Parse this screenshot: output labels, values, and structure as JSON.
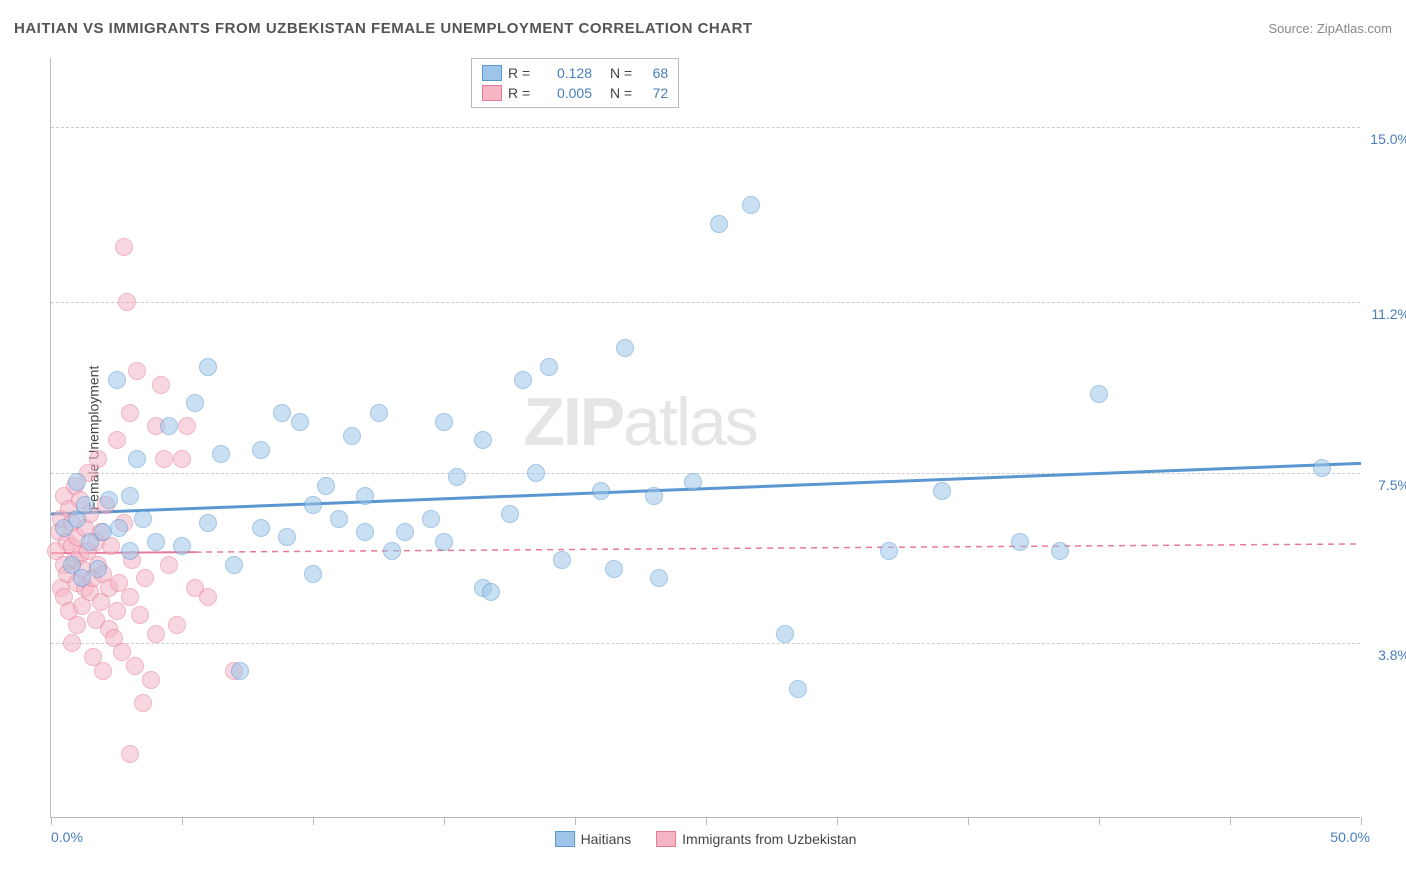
{
  "title": "HAITIAN VS IMMIGRANTS FROM UZBEKISTAN FEMALE UNEMPLOYMENT CORRELATION CHART",
  "source_label": "Source: ",
  "source_name": "ZipAtlas.com",
  "watermark": {
    "part1": "ZIP",
    "part2": "atlas"
  },
  "yaxis_title": "Female Unemployment",
  "chart": {
    "type": "scatter",
    "xlim": [
      0,
      50
    ],
    "ylim": [
      0,
      16.5
    ],
    "x_ticks_minor_step": 5,
    "x_min_label": "0.0%",
    "x_max_label": "50.0%",
    "y_gridlines": [
      {
        "value": 15.0,
        "label": "15.0%"
      },
      {
        "value": 11.2,
        "label": "11.2%"
      },
      {
        "value": 7.5,
        "label": "7.5%"
      },
      {
        "value": 3.8,
        "label": "3.8%"
      }
    ],
    "background_color": "#ffffff",
    "grid_color": "#cccccc",
    "axis_color": "#bbbbbb",
    "tick_label_color": "#4a7ebb",
    "marker_radius": 9,
    "marker_opacity": 0.55
  },
  "series": [
    {
      "key": "haitians",
      "label": "Haitians",
      "color_fill": "#9ec5e8",
      "color_stroke": "#5a96d0",
      "r_value": "0.128",
      "n_value": "68",
      "trend": {
        "y_at_x0": 6.6,
        "y_at_x50": 7.7,
        "stroke_width": 3,
        "dash": "none",
        "solid_to_x": 50
      },
      "points": [
        [
          0.5,
          6.3
        ],
        [
          0.8,
          5.5
        ],
        [
          1.0,
          6.5
        ],
        [
          1.0,
          7.3
        ],
        [
          1.2,
          5.2
        ],
        [
          1.3,
          6.8
        ],
        [
          1.5,
          6.0
        ],
        [
          1.8,
          5.4
        ],
        [
          2.0,
          6.2
        ],
        [
          2.2,
          6.9
        ],
        [
          2.5,
          9.5
        ],
        [
          2.6,
          6.3
        ],
        [
          3.0,
          7.0
        ],
        [
          3.0,
          5.8
        ],
        [
          3.3,
          7.8
        ],
        [
          3.5,
          6.5
        ],
        [
          4.0,
          6.0
        ],
        [
          4.5,
          8.5
        ],
        [
          5.0,
          5.9
        ],
        [
          5.5,
          9.0
        ],
        [
          6.0,
          9.8
        ],
        [
          6.0,
          6.4
        ],
        [
          6.5,
          7.9
        ],
        [
          7.0,
          5.5
        ],
        [
          7.2,
          3.2
        ],
        [
          8.0,
          8.0
        ],
        [
          8.0,
          6.3
        ],
        [
          8.8,
          8.8
        ],
        [
          9.0,
          6.1
        ],
        [
          9.5,
          8.6
        ],
        [
          10.0,
          6.8
        ],
        [
          10.0,
          5.3
        ],
        [
          10.5,
          7.2
        ],
        [
          11.0,
          6.5
        ],
        [
          11.5,
          8.3
        ],
        [
          12.0,
          7.0
        ],
        [
          12.0,
          6.2
        ],
        [
          12.5,
          8.8
        ],
        [
          13.0,
          5.8
        ],
        [
          13.5,
          6.2
        ],
        [
          14.5,
          6.5
        ],
        [
          15.0,
          8.6
        ],
        [
          15.0,
          6.0
        ],
        [
          15.5,
          7.4
        ],
        [
          16.5,
          8.2
        ],
        [
          16.5,
          5.0
        ],
        [
          16.8,
          4.9
        ],
        [
          17.5,
          6.6
        ],
        [
          18.0,
          9.5
        ],
        [
          19.0,
          9.8
        ],
        [
          18.5,
          7.5
        ],
        [
          19.5,
          5.6
        ],
        [
          21.0,
          7.1
        ],
        [
          21.5,
          5.4
        ],
        [
          21.9,
          10.2
        ],
        [
          23.0,
          7.0
        ],
        [
          23.2,
          5.2
        ],
        [
          24.5,
          7.3
        ],
        [
          25.5,
          12.9
        ],
        [
          26.7,
          13.3
        ],
        [
          28.0,
          4.0
        ],
        [
          28.5,
          2.8
        ],
        [
          32.0,
          5.8
        ],
        [
          34.0,
          7.1
        ],
        [
          37.0,
          6.0
        ],
        [
          38.5,
          5.8
        ],
        [
          40.0,
          9.2
        ],
        [
          48.5,
          7.6
        ]
      ]
    },
    {
      "key": "uzbekistan",
      "label": "Immigrants from Uzbekistan",
      "color_fill": "#f4b6c5",
      "color_stroke": "#e77a97",
      "r_value": "0.005",
      "n_value": "72",
      "trend": {
        "y_at_x0": 5.75,
        "y_at_x50": 5.95,
        "stroke_width": 2,
        "dash": "6,5",
        "solid_to_x": 5.5
      },
      "points": [
        [
          0.2,
          5.8
        ],
        [
          0.3,
          6.2
        ],
        [
          0.4,
          5.0
        ],
        [
          0.4,
          6.5
        ],
        [
          0.5,
          5.5
        ],
        [
          0.5,
          7.0
        ],
        [
          0.5,
          4.8
        ],
        [
          0.6,
          6.0
        ],
        [
          0.6,
          5.3
        ],
        [
          0.7,
          6.7
        ],
        [
          0.7,
          4.5
        ],
        [
          0.8,
          5.9
        ],
        [
          0.8,
          6.4
        ],
        [
          0.8,
          3.8
        ],
        [
          0.9,
          5.6
        ],
        [
          0.9,
          7.2
        ],
        [
          1.0,
          5.1
        ],
        [
          1.0,
          6.1
        ],
        [
          1.0,
          4.2
        ],
        [
          1.1,
          5.7
        ],
        [
          1.1,
          6.9
        ],
        [
          1.2,
          5.4
        ],
        [
          1.2,
          4.6
        ],
        [
          1.3,
          6.3
        ],
        [
          1.3,
          5.0
        ],
        [
          1.4,
          7.5
        ],
        [
          1.4,
          5.8
        ],
        [
          1.5,
          4.9
        ],
        [
          1.5,
          6.6
        ],
        [
          1.6,
          5.2
        ],
        [
          1.6,
          3.5
        ],
        [
          1.7,
          6.0
        ],
        [
          1.7,
          4.3
        ],
        [
          1.8,
          5.5
        ],
        [
          1.8,
          7.8
        ],
        [
          1.9,
          4.7
        ],
        [
          1.9,
          6.2
        ],
        [
          2.0,
          5.3
        ],
        [
          2.0,
          3.2
        ],
        [
          2.1,
          6.8
        ],
        [
          2.2,
          5.0
        ],
        [
          2.2,
          4.1
        ],
        [
          2.3,
          5.9
        ],
        [
          2.4,
          3.9
        ],
        [
          2.5,
          4.5
        ],
        [
          2.5,
          8.2
        ],
        [
          2.6,
          5.1
        ],
        [
          2.7,
          3.6
        ],
        [
          2.8,
          6.4
        ],
        [
          2.8,
          12.4
        ],
        [
          2.9,
          11.2
        ],
        [
          3.0,
          8.8
        ],
        [
          3.0,
          4.8
        ],
        [
          3.0,
          1.4
        ],
        [
          3.1,
          5.6
        ],
        [
          3.2,
          3.3
        ],
        [
          3.3,
          9.7
        ],
        [
          3.4,
          4.4
        ],
        [
          3.5,
          2.5
        ],
        [
          3.6,
          5.2
        ],
        [
          3.8,
          3.0
        ],
        [
          4.0,
          8.5
        ],
        [
          4.0,
          4.0
        ],
        [
          4.2,
          9.4
        ],
        [
          4.3,
          7.8
        ],
        [
          4.5,
          5.5
        ],
        [
          4.8,
          4.2
        ],
        [
          5.0,
          7.8
        ],
        [
          5.2,
          8.5
        ],
        [
          5.5,
          5.0
        ],
        [
          6.0,
          4.8
        ],
        [
          7.0,
          3.2
        ]
      ]
    }
  ],
  "legend_labels": {
    "R": "R =",
    "N": "N ="
  }
}
